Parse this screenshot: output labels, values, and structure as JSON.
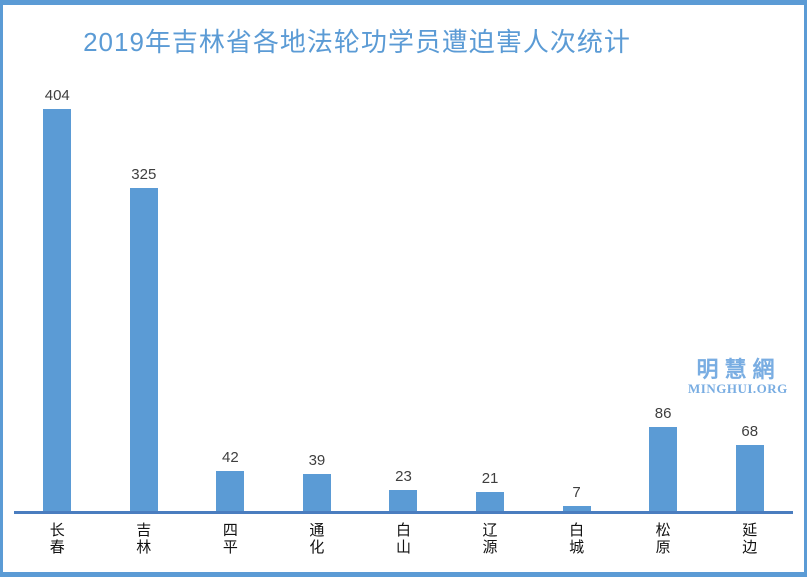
{
  "title": "2019年吉林省各地法轮功学员遭迫害人次统计",
  "logo": {
    "cjk": "明慧網",
    "latin": "MINGHUI.ORG"
  },
  "colors": {
    "bar": "#5b9bd5",
    "title": "#5b9bd5",
    "axis_line": "#4a7dbf",
    "frame_border": "#5b9bd5",
    "value_label": "#3f3f3f",
    "category_label": "#111111",
    "logo": "#79ade2",
    "background": "#ffffff"
  },
  "chart_data": {
    "type": "bar",
    "title": "2019年吉林省各地法轮功学员遭迫害人次统计",
    "categories": [
      "长春",
      "吉林",
      "四平",
      "通化",
      "白山",
      "辽源",
      "白城",
      "松原",
      "延边"
    ],
    "values": [
      404,
      325,
      42,
      39,
      23,
      21,
      7,
      86,
      68
    ],
    "xlabel": "",
    "ylabel": "",
    "ylim": [
      0,
      428
    ],
    "grid": false,
    "legend": null,
    "data_labels": true,
    "orientation": "vertical"
  }
}
